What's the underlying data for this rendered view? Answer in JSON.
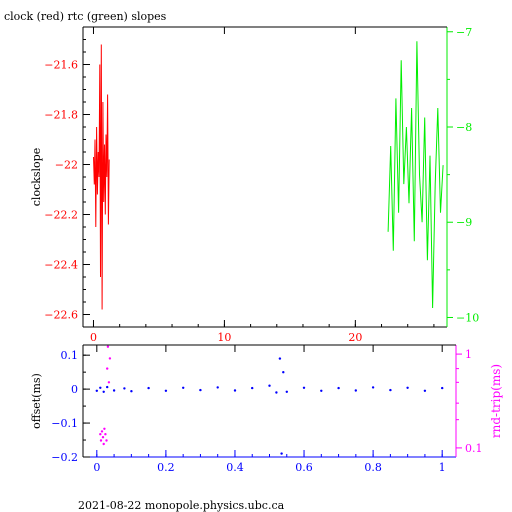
{
  "title": "clock (red) rtc (green) slopes",
  "footer": "2021-08-22  monopole.physics.ubc.ca",
  "colors": {
    "clock": "#ff0000",
    "rtc": "#00ee00",
    "offset": "#0000ff",
    "rndtrip": "#ff00ff",
    "axis": "#000000"
  },
  "chart_data": [
    {
      "type": "line",
      "title": "clock (red) rtc (green) slopes",
      "xlabel": "",
      "ylabel": "clockslope",
      "ylabel_right": "",
      "xlim": [
        -0.8,
        27.0
      ],
      "ylim": [
        -22.65,
        -21.45
      ],
      "ylim_right": [
        -10.1,
        -6.95
      ],
      "x_ticks": [
        0,
        10,
        20
      ],
      "y_ticks": [
        -21.6,
        -21.8,
        -22,
        -22.2,
        -22.4,
        -22.6
      ],
      "y_ticks_right": [
        -7,
        -8,
        -9,
        -10
      ],
      "series": [
        {
          "name": "clock",
          "axis": "left",
          "x": [
            0.0,
            0.06,
            0.12,
            0.18,
            0.24,
            0.3,
            0.36,
            0.42,
            0.48,
            0.54,
            0.6,
            0.66,
            0.72,
            0.78,
            0.84,
            0.9,
            0.96,
            1.02,
            1.08,
            1.14,
            1.2
          ],
          "y": [
            -21.97,
            -22.08,
            -21.9,
            -22.25,
            -21.85,
            -22.12,
            -21.95,
            -22.05,
            -21.6,
            -22.45,
            -21.52,
            -22.58,
            -21.75,
            -22.15,
            -21.92,
            -22.2,
            -21.88,
            -22.05,
            -21.72,
            -22.24,
            -21.98
          ]
        },
        {
          "name": "rtc",
          "axis": "right",
          "x": [
            22.5,
            22.7,
            22.9,
            23.1,
            23.3,
            23.5,
            23.7,
            23.9,
            24.1,
            24.3,
            24.5,
            24.7,
            24.9,
            25.1,
            25.3,
            25.5,
            25.7,
            25.9,
            26.1,
            26.3,
            26.5,
            26.7
          ],
          "y": [
            -9.1,
            -8.2,
            -9.3,
            -7.7,
            -8.9,
            -7.3,
            -8.6,
            -8.0,
            -8.8,
            -7.8,
            -9.2,
            -7.1,
            -8.5,
            -9.0,
            -7.9,
            -9.4,
            -8.3,
            -9.9,
            -8.6,
            -7.8,
            -8.9,
            -8.4
          ]
        }
      ]
    },
    {
      "type": "scatter",
      "xlabel": "",
      "ylabel": "offset(ms)",
      "ylabel_right": "rnd-trip(ms)",
      "xlim": [
        -0.04,
        1.04
      ],
      "ylim": [
        -0.2,
        0.13
      ],
      "ylim_right": [
        0.08,
        1.25
      ],
      "y_scale_right": "log",
      "x_ticks": [
        0,
        0.2,
        0.4,
        0.6,
        0.8,
        1
      ],
      "y_ticks": [
        0.1,
        0,
        -0.1,
        -0.2
      ],
      "y_ticks_right": [
        1,
        0.1
      ],
      "series": [
        {
          "name": "offset",
          "axis": "left",
          "x": [
            0.0,
            0.01,
            0.02,
            0.03,
            0.05,
            0.08,
            0.1,
            0.15,
            0.2,
            0.25,
            0.3,
            0.35,
            0.4,
            0.45,
            0.5,
            0.52,
            0.53,
            0.535,
            0.54,
            0.55,
            0.6,
            0.65,
            0.7,
            0.75,
            0.8,
            0.85,
            0.9,
            0.95,
            1.0
          ],
          "y": [
            -0.005,
            0.004,
            -0.008,
            0.006,
            -0.004,
            0.002,
            -0.006,
            0.003,
            -0.005,
            0.004,
            -0.003,
            0.005,
            -0.004,
            0.003,
            0.01,
            -0.01,
            0.09,
            -0.19,
            0.05,
            -0.008,
            0.004,
            -0.005,
            0.003,
            -0.004,
            0.005,
            -0.003,
            0.004,
            -0.005,
            0.003
          ]
        },
        {
          "name": "rnd-trip",
          "axis": "right",
          "x": [
            0.01,
            0.012,
            0.015,
            0.018,
            0.02,
            0.022,
            0.025,
            0.028,
            0.03,
            0.032,
            0.035,
            0.038
          ],
          "y": [
            0.14,
            0.12,
            0.15,
            0.13,
            0.11,
            0.16,
            0.14,
            0.12,
            0.7,
            1.2,
            0.5,
            0.9
          ]
        }
      ]
    }
  ]
}
